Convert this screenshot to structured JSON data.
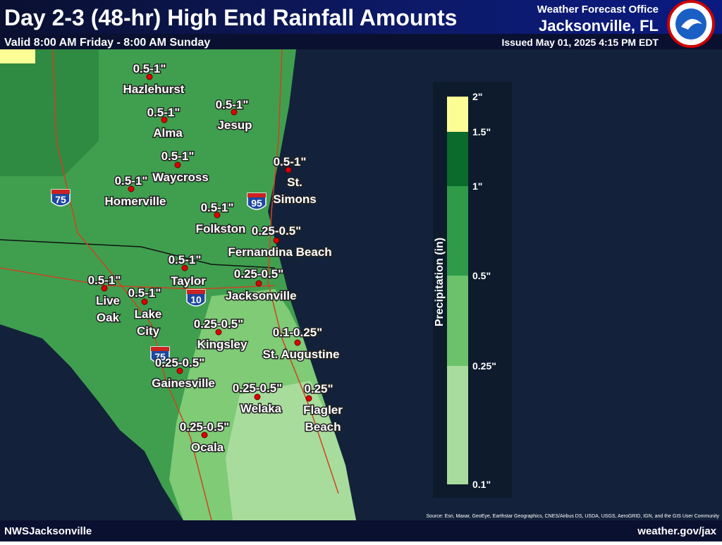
{
  "header": {
    "title": "Day 2-3 (48-hr) High End Rainfall Amounts",
    "valid": "Valid 8:00 AM Friday - 8:00 AM Sunday",
    "office": "Weather Forecast Office",
    "office_location": "Jacksonville, FL",
    "issued": "Issued May 01, 2025 4:15 PM EDT"
  },
  "locations": [
    {
      "name_lines": [
        "Hazlehurst"
      ],
      "amount": "0.5-1\""
    },
    {
      "name_lines": [
        "Alma"
      ],
      "amount": "0.5-1\""
    },
    {
      "name_lines": [
        "Jesup"
      ],
      "amount": "0.5-1\""
    },
    {
      "name_lines": [
        "Waycross"
      ],
      "amount": "0.5-1\""
    },
    {
      "name_lines": [
        "Homerville"
      ],
      "amount": "0.5-1\""
    },
    {
      "name_lines": [
        "St.",
        "Simons"
      ],
      "amount": "0.5-1\""
    },
    {
      "name_lines": [
        "Folkston"
      ],
      "amount": "0.5-1\""
    },
    {
      "name_lines": [
        "Fernandina Beach"
      ],
      "amount": "0.25-0.5\""
    },
    {
      "name_lines": [
        "Taylor"
      ],
      "amount": "0.5-1\""
    },
    {
      "name_lines": [
        "Jacksonville"
      ],
      "amount": "0.25-0.5\""
    },
    {
      "name_lines": [
        "Live",
        "Oak"
      ],
      "amount": "0.5-1\""
    },
    {
      "name_lines": [
        "Lake",
        "City"
      ],
      "amount": "0.5-1\""
    },
    {
      "name_lines": [
        "Kingsley"
      ],
      "amount": "0.25-0.5\""
    },
    {
      "name_lines": [
        "St. Augustine"
      ],
      "amount": "0.1-0.25\""
    },
    {
      "name_lines": [
        "Gainesville"
      ],
      "amount": "0.25-0.5\""
    },
    {
      "name_lines": [
        "Welaka"
      ],
      "amount": "0.25-0.5\""
    },
    {
      "name_lines": [
        "Flagler",
        "Beach"
      ],
      "amount": "0.25\""
    },
    {
      "name_lines": [
        "Ocala"
      ],
      "amount": "0.25-0.5\""
    }
  ],
  "interstates": [
    "75",
    "95",
    "10",
    "75"
  ],
  "legend": {
    "title": "Precipitation (in)",
    "labels": [
      "2\"",
      "1.5\"",
      "1\"",
      "0.5\"",
      "0.25\"",
      "0.1\""
    ],
    "colors": [
      "#fdfd96",
      "#0b6b2c",
      "#2f9b48",
      "#6cc26a",
      "#a8dc9c"
    ]
  },
  "footer": {
    "left": "NWSJacksonville",
    "right": "weather.gov/jax",
    "attribution": "Source: Esri, Maxar, GeoEye, Earthstar Geographics, CNES/Airbus DS, USDA, USGS, AeroGRID, IGN, and the GIS User Community"
  }
}
